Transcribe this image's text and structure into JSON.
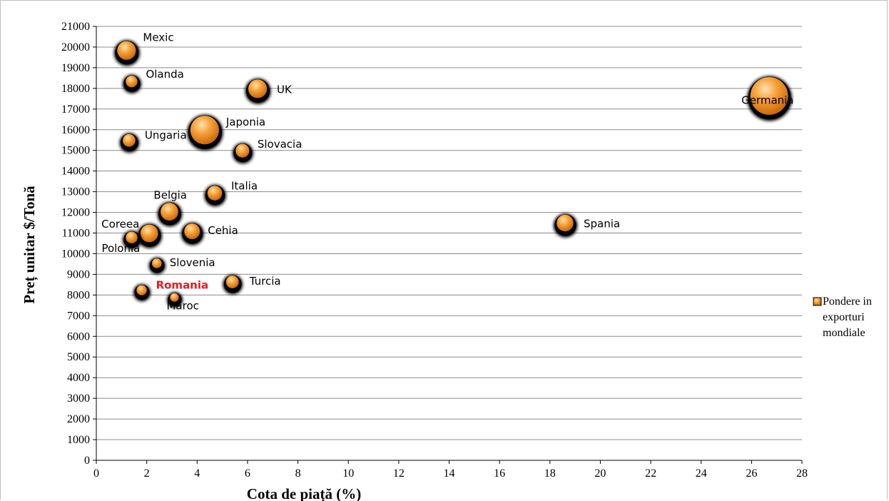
{
  "chart_data": {
    "type": "bubble",
    "xlabel": "Cota de piață (%)",
    "ylabel": "Preț unitar  $/Tonă",
    "xlim": [
      0,
      28
    ],
    "ylim": [
      0,
      21000
    ],
    "x_ticks": [
      "0",
      "2",
      "4",
      "6",
      "8",
      "10",
      "12",
      "14",
      "16",
      "18",
      "20",
      "22",
      "24",
      "26",
      "28"
    ],
    "y_ticks": [
      "0",
      "1000",
      "2000",
      "3000",
      "4000",
      "5000",
      "6000",
      "7000",
      "8000",
      "9000",
      "10000",
      "11000",
      "12000",
      "13000",
      "14000",
      "15000",
      "16000",
      "17000",
      "18000",
      "19000",
      "20000",
      "21000"
    ],
    "grid": "horizontal",
    "legend": {
      "label_lines": [
        "Pondere in",
        "exporturi",
        "mondiale"
      ],
      "placement": "right"
    },
    "colors": {
      "bubble_fill": "#f28c1e",
      "bubble_highlight": "#ffd49a",
      "shadow": "#000000",
      "gridline": "#8c8c8c",
      "highlight_label": "#e31b23"
    },
    "points": [
      {
        "label": "Mexic",
        "x": 1.2,
        "y": 19800,
        "size": 1.3
      },
      {
        "label": "Olanda",
        "x": 1.4,
        "y": 18300,
        "size": 0.6
      },
      {
        "label": "UK",
        "x": 6.4,
        "y": 17950,
        "size": 1.3
      },
      {
        "label": "Germania",
        "x": 26.7,
        "y": 17600,
        "size": 3.2
      },
      {
        "label": "Japonia",
        "x": 4.3,
        "y": 15950,
        "size": 2.3
      },
      {
        "label": "Ungaria",
        "x": 1.3,
        "y": 15450,
        "size": 0.7
      },
      {
        "label": "Slovacia",
        "x": 5.8,
        "y": 14950,
        "size": 0.8
      },
      {
        "label": "Italia",
        "x": 4.7,
        "y": 12900,
        "size": 0.9
      },
      {
        "label": "Belgia",
        "x": 2.9,
        "y": 12000,
        "size": 1.2
      },
      {
        "label": "Spania",
        "x": 18.6,
        "y": 11450,
        "size": 1.1
      },
      {
        "label": "Coreea",
        "x": 2.1,
        "y": 10950,
        "size": 1.2
      },
      {
        "label": "Cehia",
        "x": 3.8,
        "y": 11050,
        "size": 1.0
      },
      {
        "label": "Polonia",
        "x": 1.4,
        "y": 10750,
        "size": 0.6
      },
      {
        "label": "Slovenia",
        "x": 2.4,
        "y": 9500,
        "size": 0.4
      },
      {
        "label": "Turcia",
        "x": 5.4,
        "y": 8600,
        "size": 0.7
      },
      {
        "label": "Romania",
        "x": 1.8,
        "y": 8200,
        "size": 0.45,
        "highlight": true
      },
      {
        "label": "Maroc",
        "x": 3.1,
        "y": 7850,
        "size": 0.3
      }
    ]
  }
}
